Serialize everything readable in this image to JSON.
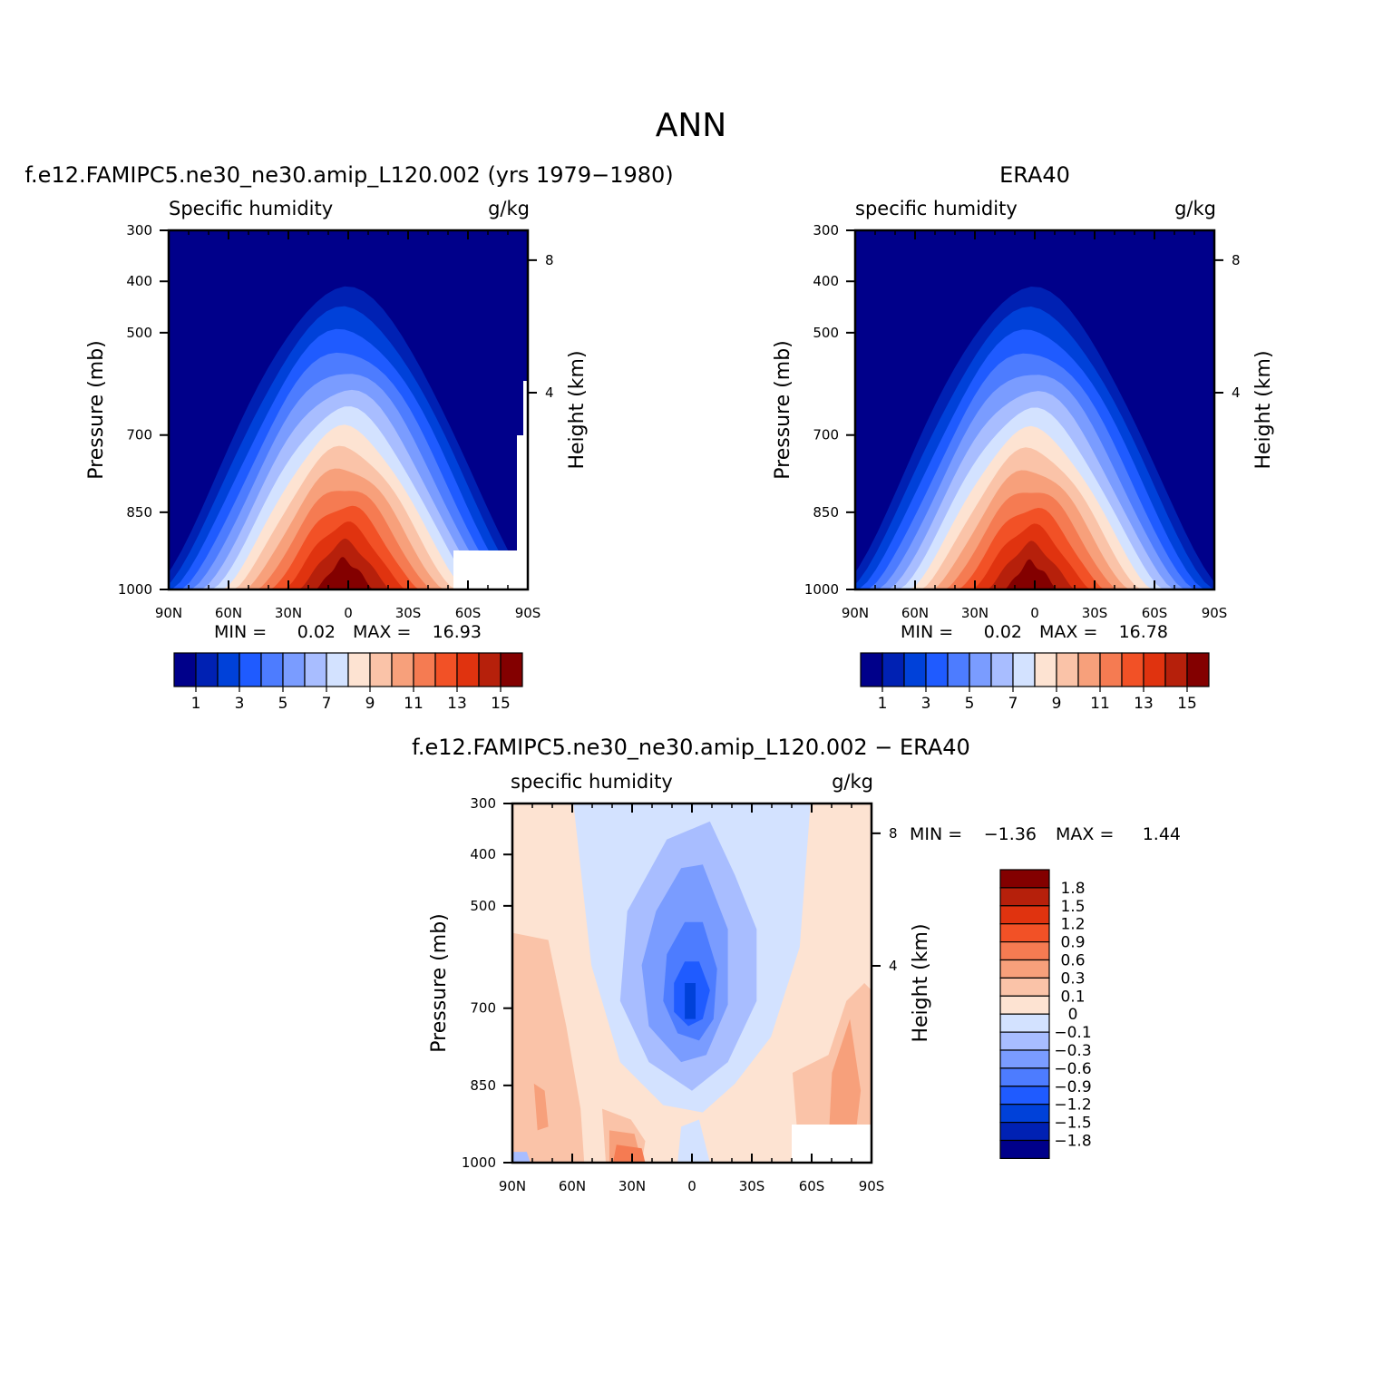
{
  "title": "ANN",
  "chart_data": [
    {
      "type": "heatmap",
      "panel": "model",
      "header": "f.e12.FAMIPC5.ne30_ne30.amip_L120.002 (yrs 1979−1980)",
      "left_label": "Specific humidity",
      "units": "g/kg",
      "ylabel": "Pressure (mb)",
      "y2label": "Height (km)",
      "xticks": [
        "90N",
        "60N",
        "30N",
        "0",
        "30S",
        "60S",
        "90S"
      ],
      "yticks": [
        "300",
        "400",
        "500",
        "700",
        "850",
        "1000"
      ],
      "y2ticks": [
        "8",
        "4"
      ],
      "min_label": "MIN =",
      "min": "0.02",
      "max_label": "MAX =",
      "max": "16.93",
      "peak_value": 16.93,
      "colorbar_labels": [
        "1",
        "3",
        "5",
        "7",
        "9",
        "11",
        "13",
        "15"
      ]
    },
    {
      "type": "heatmap",
      "panel": "obs",
      "header": "ERA40",
      "left_label": "specific humidity",
      "units": "g/kg",
      "ylabel": "Pressure (mb)",
      "y2label": "Height (km)",
      "xticks": [
        "90N",
        "60N",
        "30N",
        "0",
        "30S",
        "60S",
        "90S"
      ],
      "yticks": [
        "300",
        "400",
        "500",
        "700",
        "850",
        "1000"
      ],
      "y2ticks": [
        "8",
        "4"
      ],
      "min_label": "MIN =",
      "min": "0.02",
      "max_label": "MAX =",
      "max": "16.78",
      "peak_value": 16.78,
      "colorbar_labels": [
        "1",
        "3",
        "5",
        "7",
        "9",
        "11",
        "13",
        "15"
      ]
    },
    {
      "type": "heatmap",
      "panel": "diff",
      "header": "f.e12.FAMIPC5.ne30_ne30.amip_L120.002 − ERA40",
      "left_label": "specific humidity",
      "units": "g/kg",
      "ylabel": "Pressure (mb)",
      "y2label": "Height (km)",
      "xticks": [
        "90N",
        "60N",
        "30N",
        "0",
        "30S",
        "60S",
        "90S"
      ],
      "yticks": [
        "300",
        "400",
        "500",
        "700",
        "850",
        "1000"
      ],
      "y2ticks": [
        "8",
        "4"
      ],
      "min_label": "MIN =",
      "min": "−1.36",
      "max_label": "MAX =",
      "max": "1.44",
      "colorbar_labels": [
        "1.8",
        "1.5",
        "1.2",
        "0.9",
        "0.6",
        "0.3",
        "0.1",
        "0",
        "−0.1",
        "−0.3",
        "−0.6",
        "−0.9",
        "−1.2",
        "−1.5",
        "−1.8"
      ]
    }
  ],
  "colors": {
    "abs_scale": [
      "#00008a",
      "#0021b3",
      "#0041d9",
      "#1f5bff",
      "#4d7cff",
      "#7a9cff",
      "#a8bdff",
      "#d3e2ff",
      "#fde3d2",
      "#fac3a8",
      "#f7a07b",
      "#f57b52",
      "#f25126",
      "#e0330f",
      "#b6200b",
      "#830000"
    ],
    "diff_scale": [
      "#830000",
      "#b6200b",
      "#e0330f",
      "#f25126",
      "#f57b52",
      "#f7a07b",
      "#fac3a8",
      "#fde3d2",
      "#d3e2ff",
      "#a8bdff",
      "#7a9cff",
      "#4d7cff",
      "#1f5bff",
      "#0041d9",
      "#0021b3",
      "#00008a"
    ]
  }
}
